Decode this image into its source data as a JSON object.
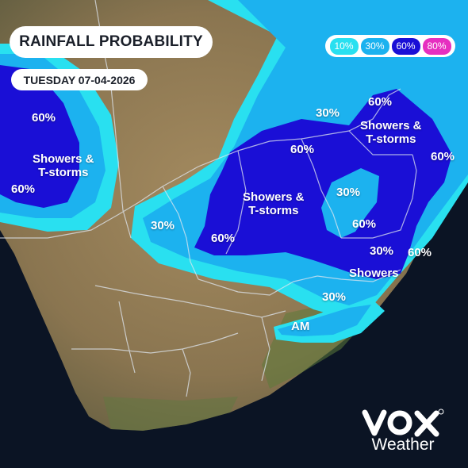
{
  "title": "RAINFALL PROBABILITY",
  "date": "TUESDAY 07-04-2026",
  "legend": [
    {
      "label": "10%",
      "color": "#29e0f0"
    },
    {
      "label": "30%",
      "color": "#1cb2ef"
    },
    {
      "label": "60%",
      "color": "#1a0fd6"
    },
    {
      "label": "80%",
      "color": "#e62fc0"
    }
  ],
  "labels": {
    "west_60_top": "60%",
    "west_phrase": "Showers &\nT-storms",
    "west_60_bottom": "60%",
    "center_30_left": "30%",
    "center_60_top": "60%",
    "center_phrase": "Showers &\nT-storms",
    "center_60_bottom": "60%",
    "north_30": "30%",
    "ne_60_top": "60%",
    "ne_phrase": "Showers &\nT-storms",
    "east_60": "60%",
    "east_30_mid": "30%",
    "east_60_mid": "60%",
    "se_30": "30%",
    "se_60": "60%",
    "se_phrase": "Showers",
    "coast_30": "30%",
    "am": "AM"
  },
  "logo": {
    "mark": "VOX",
    "word": "Weather"
  }
}
